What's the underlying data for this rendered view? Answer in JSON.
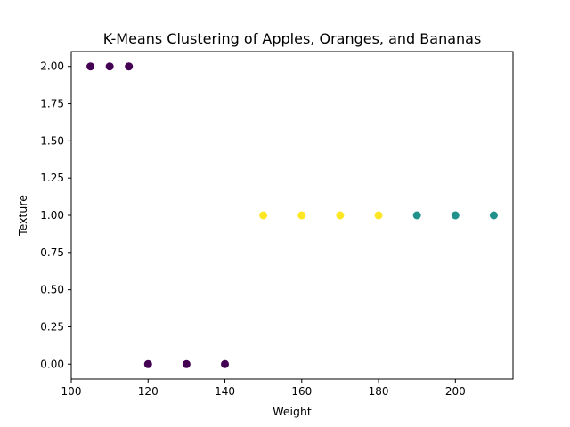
{
  "chart_data": {
    "type": "scatter",
    "title": "K-Means Clustering of Apples, Oranges, and Bananas",
    "xlabel": "Weight",
    "ylabel": "Texture",
    "xlim": [
      100,
      215
    ],
    "ylim": [
      -0.1,
      2.1
    ],
    "xticks": [
      100,
      120,
      140,
      160,
      180,
      200
    ],
    "xtick_labels": [
      "100",
      "120",
      "140",
      "160",
      "180",
      "200"
    ],
    "yticks": [
      0,
      0.25,
      0.5,
      0.75,
      1.0,
      1.25,
      1.5,
      1.75,
      2.0
    ],
    "ytick_labels": [
      "0.00",
      "0.25",
      "0.50",
      "0.75",
      "1.00",
      "1.25",
      "1.50",
      "1.75",
      "2.00"
    ],
    "grid": false,
    "clusters": [
      {
        "color": "#440154",
        "points": [
          [
            105,
            2
          ],
          [
            110,
            2
          ],
          [
            115,
            2
          ],
          [
            120,
            0
          ],
          [
            130,
            0
          ],
          [
            140,
            0
          ]
        ]
      },
      {
        "color": "#fde725",
        "points": [
          [
            150,
            1
          ],
          [
            160,
            1
          ],
          [
            170,
            1
          ],
          [
            180,
            1
          ]
        ]
      },
      {
        "color": "#21918c",
        "points": [
          [
            190,
            1
          ],
          [
            200,
            1
          ],
          [
            210,
            1
          ]
        ]
      }
    ]
  }
}
